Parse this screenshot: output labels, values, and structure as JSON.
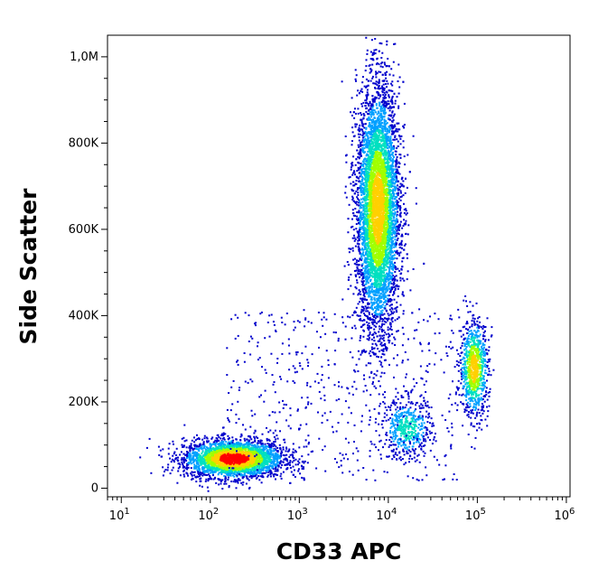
{
  "chart_data": {
    "type": "scatter",
    "subtype": "flow-cytometry density dot plot",
    "title": "",
    "xlabel": "CD33 APC",
    "ylabel": "Side Scatter",
    "x_scale": "log",
    "xlim": [
      7,
      1100000
    ],
    "ylim": [
      -20000,
      1050000
    ],
    "x_ticks": [
      {
        "value": 10,
        "base": "10",
        "exp": "1"
      },
      {
        "value": 100,
        "base": "10",
        "exp": "2"
      },
      {
        "value": 1000,
        "base": "10",
        "exp": "3"
      },
      {
        "value": 10000,
        "base": "10",
        "exp": "4"
      },
      {
        "value": 100000,
        "base": "10",
        "exp": "5"
      },
      {
        "value": 1000000,
        "base": "10",
        "exp": "6"
      }
    ],
    "y_ticks": [
      {
        "value": 0,
        "label": "0"
      },
      {
        "value": 200000,
        "label": "200K"
      },
      {
        "value": 400000,
        "label": "400K"
      },
      {
        "value": 600000,
        "label": "600K"
      },
      {
        "value": 800000,
        "label": "800K"
      },
      {
        "value": 1000000,
        "label": "1,0M"
      }
    ],
    "grid": false,
    "legend": "none",
    "colormap": [
      "#0000cc",
      "#00a0ff",
      "#00e0c0",
      "#a0ff00",
      "#ffd000",
      "#ff0000"
    ],
    "populations": [
      {
        "center_x": 180,
        "center_y": 70000,
        "spread_log_x": 0.28,
        "spread_y": 22000,
        "weight": 3000,
        "peak": "high"
      },
      {
        "center_x": 7500,
        "center_y": 650000,
        "spread_log_x": 0.12,
        "spread_y": 140000,
        "weight": 6000,
        "peak": "medium"
      },
      {
        "center_x": 90000,
        "center_y": 280000,
        "spread_log_x": 0.08,
        "spread_y": 55000,
        "weight": 900,
        "peak": "medium"
      },
      {
        "center_x": 16000,
        "center_y": 140000,
        "spread_log_x": 0.14,
        "spread_y": 35000,
        "weight": 500,
        "peak": "low"
      }
    ]
  }
}
